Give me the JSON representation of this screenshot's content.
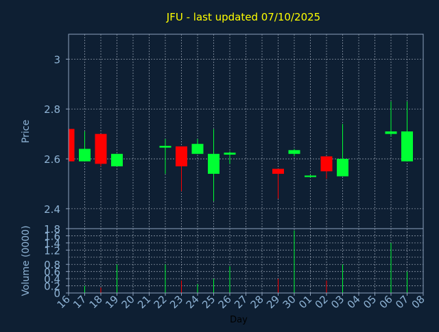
{
  "chart_data": {
    "type": "candlestick",
    "title": "JFU - last updated 07/10/2025",
    "xlabel": "Day",
    "colors": {
      "background": "#0e1f33",
      "axis": "#8fa3bf",
      "grid": "#b8c2d0",
      "text": "#8fb4d6",
      "title": "#ffff00",
      "up": "#00ff33",
      "down": "#ff0000"
    },
    "price_panel": {
      "ylabel": "Price",
      "ylim": [
        2.32,
        3.1
      ],
      "yticks": [
        2.4,
        2.6,
        2.8,
        3
      ],
      "ytick_labels": [
        "2.4",
        "2.6",
        "2.8",
        "3"
      ]
    },
    "volume_panel": {
      "ylabel": "Volume (0000)",
      "ylim": [
        0,
        1.8
      ],
      "yticks": [
        0,
        0.2,
        0.4,
        0.6,
        0.8,
        1.2,
        1.4,
        1.6,
        1.8
      ],
      "ytick_labels": [
        "0",
        "0.2",
        "0.4",
        "0.6",
        "0.8",
        "1.2",
        "1.4",
        "1.6",
        "1.8"
      ],
      "minor_step": 0.2
    },
    "x_labels": [
      "16",
      "17",
      "18",
      "19",
      "20",
      "21",
      "22",
      "23",
      "24",
      "25",
      "26",
      "27",
      "28",
      "29",
      "30",
      "01",
      "02",
      "03",
      "04",
      "05",
      "06",
      "07",
      "08"
    ],
    "candles": [
      {
        "day": "16",
        "open": 2.72,
        "high": 2.72,
        "low": 2.59,
        "close": 2.59,
        "volume": 0.0
      },
      {
        "day": "17",
        "open": 2.59,
        "high": 2.71,
        "low": 2.59,
        "close": 2.64,
        "volume": 0.2
      },
      {
        "day": "18",
        "open": 2.7,
        "high": 2.7,
        "low": 2.57,
        "close": 2.58,
        "volume": 0.15
      },
      {
        "day": "19",
        "open": 2.57,
        "high": 2.62,
        "low": 2.57,
        "close": 2.62,
        "volume": 0.8
      },
      {
        "day": "22",
        "open": 2.645,
        "high": 2.68,
        "low": 2.54,
        "close": 2.652,
        "volume": 0.8
      },
      {
        "day": "23",
        "open": 2.65,
        "high": 2.65,
        "low": 2.47,
        "close": 2.57,
        "volume": 0.35
      },
      {
        "day": "24",
        "open": 2.62,
        "high": 2.68,
        "low": 2.62,
        "close": 2.66,
        "volume": 0.25
      },
      {
        "day": "25",
        "open": 2.54,
        "high": 2.72,
        "low": 2.43,
        "close": 2.62,
        "volume": 0.4
      },
      {
        "day": "26",
        "open": 2.617,
        "high": 2.63,
        "low": 2.58,
        "close": 2.625,
        "volume": 0.75
      },
      {
        "day": "29",
        "open": 2.56,
        "high": 2.56,
        "low": 2.44,
        "close": 2.54,
        "volume": 0.4
      },
      {
        "day": "30",
        "open": 2.62,
        "high": 2.64,
        "low": 2.61,
        "close": 2.635,
        "volume": 1.75
      },
      {
        "day": "01",
        "open": 2.527,
        "high": 2.535,
        "low": 2.525,
        "close": 2.533,
        "volume": 0.0
      },
      {
        "day": "02",
        "open": 2.61,
        "high": 2.61,
        "low": 2.52,
        "close": 2.55,
        "volume": 0.35
      },
      {
        "day": "03",
        "open": 2.53,
        "high": 2.74,
        "low": 2.53,
        "close": 2.6,
        "volume": 0.8
      },
      {
        "day": "06",
        "open": 2.7,
        "high": 2.83,
        "low": 2.69,
        "close": 2.71,
        "volume": 1.4
      },
      {
        "day": "07",
        "open": 2.59,
        "high": 2.83,
        "low": 2.59,
        "close": 2.71,
        "volume": 0.6
      }
    ]
  }
}
